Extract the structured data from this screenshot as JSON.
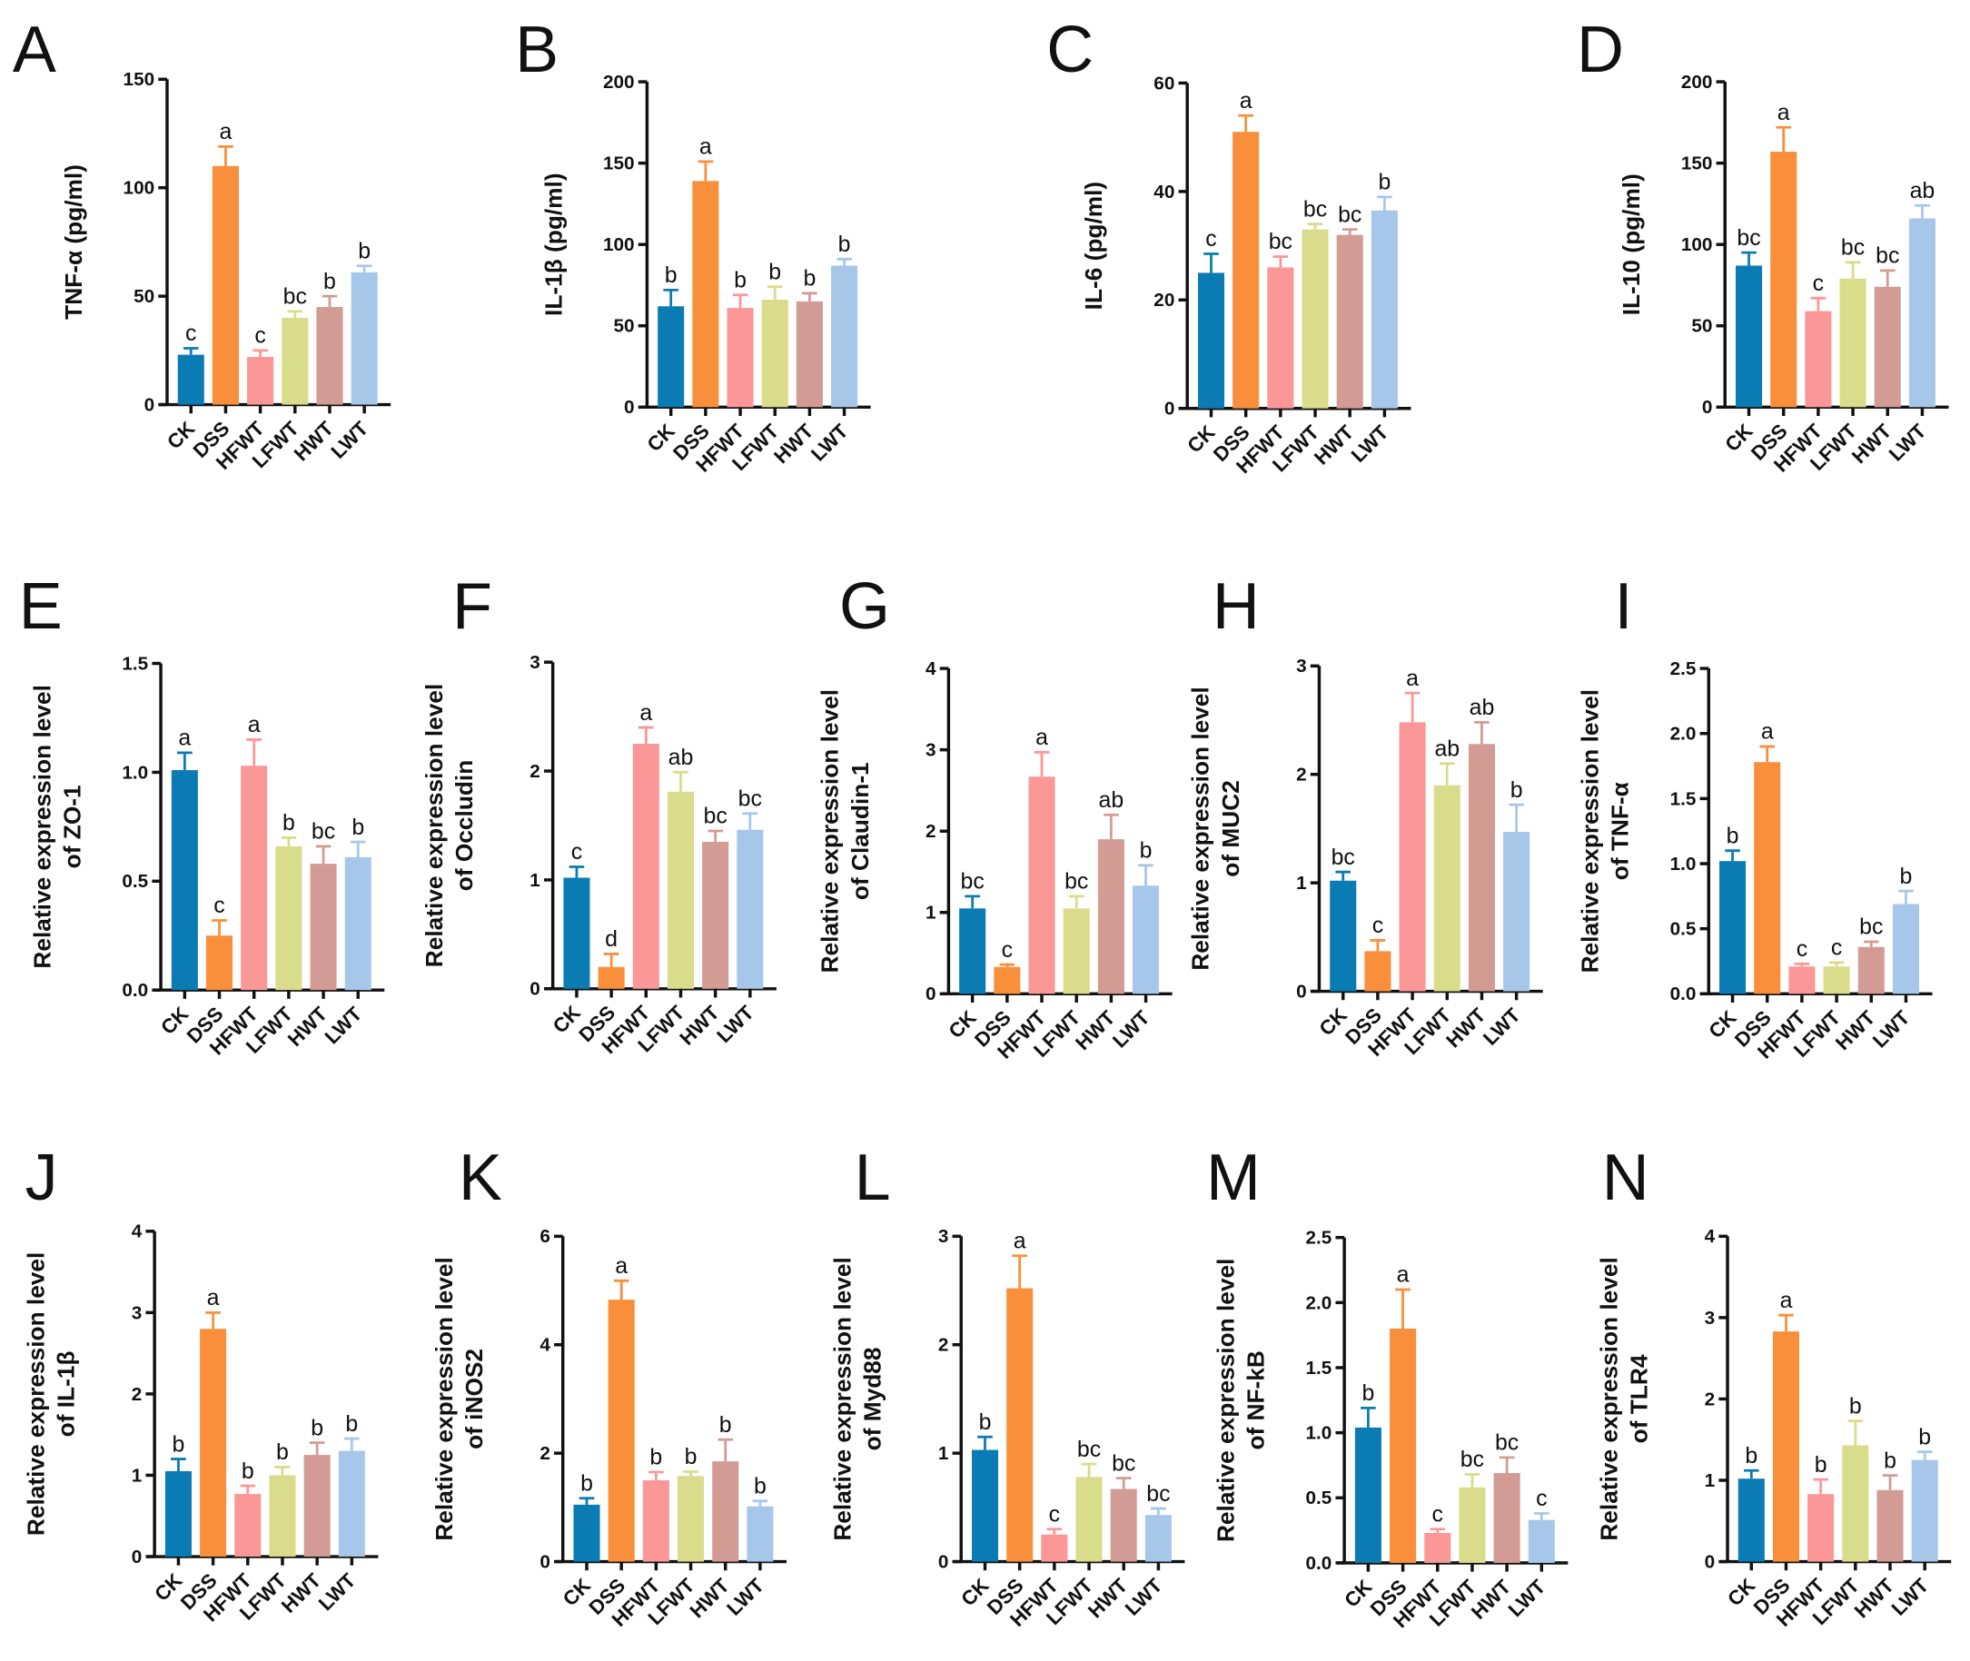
{
  "chart_data": [
    {
      "type": "bar",
      "panel": "A",
      "ylabel": [
        "TNF-α (pg/ml)"
      ],
      "ylim": [
        0,
        150
      ],
      "ticks": [
        "0",
        "50",
        "100",
        "150"
      ],
      "categories": [
        "CK",
        "DSS",
        "HFWT",
        "LFWT",
        "HWT",
        "LWT"
      ],
      "values": [
        23,
        110,
        22,
        40,
        45,
        61
      ],
      "errors": [
        3,
        9,
        3,
        3,
        5,
        3
      ],
      "letters": [
        "c",
        "a",
        "c",
        "bc",
        "b",
        "b"
      ]
    },
    {
      "type": "bar",
      "panel": "B",
      "ylabel": [
        "IL-1β (pg/ml)"
      ],
      "ylim": [
        0,
        200
      ],
      "ticks": [
        "0",
        "50",
        "100",
        "150",
        "200"
      ],
      "categories": [
        "CK",
        "DSS",
        "HFWT",
        "LFWT",
        "HWT",
        "LWT"
      ],
      "values": [
        62,
        139,
        61,
        66,
        65,
        87
      ],
      "errors": [
        10,
        12,
        8,
        8,
        5,
        4
      ],
      "letters": [
        "b",
        "a",
        "b",
        "b",
        "b",
        "b"
      ]
    },
    {
      "type": "bar",
      "panel": "C",
      "ylabel": [
        "IL-6 (pg/ml)"
      ],
      "ylim": [
        0,
        60
      ],
      "ticks": [
        "0",
        "20",
        "40",
        "60"
      ],
      "categories": [
        "CK",
        "DSS",
        "HFWT",
        "LFWT",
        "HWT",
        "LWT"
      ],
      "values": [
        25,
        51,
        26,
        33,
        32,
        36.5
      ],
      "errors": [
        3.5,
        3,
        2,
        1,
        1,
        2.5
      ],
      "letters": [
        "c",
        "a",
        "bc",
        "bc",
        "bc",
        "b"
      ]
    },
    {
      "type": "bar",
      "panel": "D",
      "ylabel": [
        "IL-10 (pg/ml)"
      ],
      "ylim": [
        0,
        200
      ],
      "ticks": [
        "0",
        "50",
        "100",
        "150",
        "200"
      ],
      "categories": [
        "CK",
        "DSS",
        "HFWT",
        "LFWT",
        "HWT",
        "LWT"
      ],
      "values": [
        87,
        157,
        59,
        79,
        74,
        116
      ],
      "errors": [
        8,
        15,
        8,
        10,
        10,
        8
      ],
      "letters": [
        "bc",
        "a",
        "c",
        "bc",
        "bc",
        "ab"
      ]
    },
    {
      "type": "bar",
      "panel": "E",
      "ylabel": [
        "Relative expression level",
        "of ZO-1"
      ],
      "ylim": [
        0,
        1.5
      ],
      "ticks": [
        "0.0",
        "0.5",
        "1.0",
        "1.5"
      ],
      "categories": [
        "CK",
        "DSS",
        "HFWT",
        "LFWT",
        "HWT",
        "LWT"
      ],
      "values": [
        1.01,
        0.25,
        1.03,
        0.66,
        0.58,
        0.61
      ],
      "errors": [
        0.08,
        0.07,
        0.12,
        0.04,
        0.08,
        0.07
      ],
      "letters": [
        "a",
        "c",
        "a",
        "b",
        "bc",
        "b"
      ]
    },
    {
      "type": "bar",
      "panel": "F",
      "ylabel": [
        "Relative expression level",
        "of Occludin"
      ],
      "ylim": [
        0,
        3
      ],
      "ticks": [
        "0",
        "1",
        "2",
        "3"
      ],
      "categories": [
        "CK",
        "DSS",
        "HFWT",
        "LFWT",
        "HWT",
        "LWT"
      ],
      "values": [
        1.02,
        0.2,
        2.25,
        1.81,
        1.35,
        1.46
      ],
      "errors": [
        0.1,
        0.12,
        0.15,
        0.18,
        0.1,
        0.15
      ],
      "letters": [
        "c",
        "d",
        "a",
        "ab",
        "bc",
        "bc"
      ]
    },
    {
      "type": "bar",
      "panel": "G",
      "ylabel": [
        "Relative expression level",
        "of Claudin-1"
      ],
      "ylim": [
        0,
        4
      ],
      "ticks": [
        "0",
        "1",
        "2",
        "3",
        "4"
      ],
      "categories": [
        "CK",
        "DSS",
        "HFWT",
        "LFWT",
        "HWT",
        "LWT"
      ],
      "values": [
        1.05,
        0.33,
        2.67,
        1.05,
        1.9,
        1.33
      ],
      "errors": [
        0.15,
        0.03,
        0.3,
        0.15,
        0.3,
        0.25
      ],
      "letters": [
        "bc",
        "c",
        "a",
        "bc",
        "ab",
        "b"
      ]
    },
    {
      "type": "bar",
      "panel": "H",
      "ylabel": [
        "Relative expression level",
        "of MUC2"
      ],
      "ylim": [
        0,
        3
      ],
      "ticks": [
        "0",
        "1",
        "2",
        "3"
      ],
      "categories": [
        "CK",
        "DSS",
        "HFWT",
        "LFWT",
        "HWT",
        "LWT"
      ],
      "values": [
        1.02,
        0.37,
        2.48,
        1.9,
        2.28,
        1.47
      ],
      "errors": [
        0.08,
        0.1,
        0.27,
        0.2,
        0.2,
        0.25
      ],
      "letters": [
        "bc",
        "c",
        "a",
        "ab",
        "ab",
        "b"
      ]
    },
    {
      "type": "bar",
      "panel": "I",
      "ylabel": [
        "Relative expression level",
        "of TNF-α"
      ],
      "ylim": [
        0,
        2.5
      ],
      "ticks": [
        "0.0",
        "0.5",
        "1.0",
        "1.5",
        "2.0",
        "2.5"
      ],
      "categories": [
        "CK",
        "DSS",
        "HFWT",
        "LFWT",
        "HWT",
        "LWT"
      ],
      "values": [
        1.02,
        1.78,
        0.21,
        0.21,
        0.36,
        0.69
      ],
      "errors": [
        0.08,
        0.12,
        0.02,
        0.03,
        0.04,
        0.1
      ],
      "letters": [
        "b",
        "a",
        "c",
        "c",
        "bc",
        "b"
      ]
    },
    {
      "type": "bar",
      "panel": "J",
      "ylabel": [
        "Relative expression level",
        "of IL-1β"
      ],
      "ylim": [
        0,
        4
      ],
      "ticks": [
        "0",
        "1",
        "2",
        "3",
        "4"
      ],
      "categories": [
        "CK",
        "DSS",
        "HFWT",
        "LFWT",
        "HWT",
        "LWT"
      ],
      "values": [
        1.05,
        2.8,
        0.77,
        1.0,
        1.25,
        1.3
      ],
      "errors": [
        0.15,
        0.2,
        0.1,
        0.1,
        0.15,
        0.15
      ],
      "letters": [
        "b",
        "a",
        "b",
        "b",
        "b",
        "b"
      ]
    },
    {
      "type": "bar",
      "panel": "K",
      "ylabel": [
        "Relative expression level",
        "of iNOS2"
      ],
      "ylim": [
        0,
        6
      ],
      "ticks": [
        "0",
        "2",
        "4",
        "6"
      ],
      "categories": [
        "CK",
        "DSS",
        "HFWT",
        "LFWT",
        "HWT",
        "LWT"
      ],
      "values": [
        1.05,
        4.83,
        1.5,
        1.58,
        1.85,
        1.02
      ],
      "errors": [
        0.12,
        0.35,
        0.15,
        0.08,
        0.4,
        0.1
      ],
      "letters": [
        "b",
        "a",
        "b",
        "b",
        "b",
        "b"
      ]
    },
    {
      "type": "bar",
      "panel": "L",
      "ylabel": [
        "Relative expression level",
        "of Myd88"
      ],
      "ylim": [
        0,
        3
      ],
      "ticks": [
        "0",
        "1",
        "2",
        "3"
      ],
      "categories": [
        "CK",
        "DSS",
        "HFWT",
        "LFWT",
        "HWT",
        "LWT"
      ],
      "values": [
        1.03,
        2.52,
        0.25,
        0.78,
        0.67,
        0.43
      ],
      "errors": [
        0.12,
        0.3,
        0.05,
        0.12,
        0.1,
        0.06
      ],
      "letters": [
        "b",
        "a",
        "c",
        "bc",
        "bc",
        "bc"
      ]
    },
    {
      "type": "bar",
      "panel": "M",
      "ylabel": [
        "Relative expression level",
        "of NF-kB"
      ],
      "ylim": [
        0,
        2.5
      ],
      "ticks": [
        "0.0",
        "0.5",
        "1.0",
        "1.5",
        "2.0",
        "2.5"
      ],
      "categories": [
        "CK",
        "DSS",
        "HFWT",
        "LFWT",
        "HWT",
        "LWT"
      ],
      "values": [
        1.04,
        1.8,
        0.23,
        0.58,
        0.69,
        0.33
      ],
      "errors": [
        0.15,
        0.3,
        0.03,
        0.1,
        0.12,
        0.05
      ],
      "letters": [
        "b",
        "a",
        "c",
        "bc",
        "bc",
        "c"
      ]
    },
    {
      "type": "bar",
      "panel": "N",
      "ylabel": [
        "Relative expression level",
        "of TLR4"
      ],
      "ylim": [
        0,
        4
      ],
      "ticks": [
        "0",
        "1",
        "2",
        "3",
        "4"
      ],
      "categories": [
        "CK",
        "DSS",
        "HFWT",
        "LFWT",
        "HWT",
        "LWT"
      ],
      "values": [
        1.02,
        2.83,
        0.83,
        1.43,
        0.88,
        1.25
      ],
      "errors": [
        0.1,
        0.2,
        0.18,
        0.3,
        0.18,
        0.1
      ],
      "letters": [
        "b",
        "a",
        "b",
        "b",
        "b",
        "b"
      ]
    }
  ],
  "colors": [
    "#0a7bb3",
    "#f98f3a",
    "#fb9797",
    "#d9dc8a",
    "#d29b94",
    "#a6c7ea"
  ]
}
